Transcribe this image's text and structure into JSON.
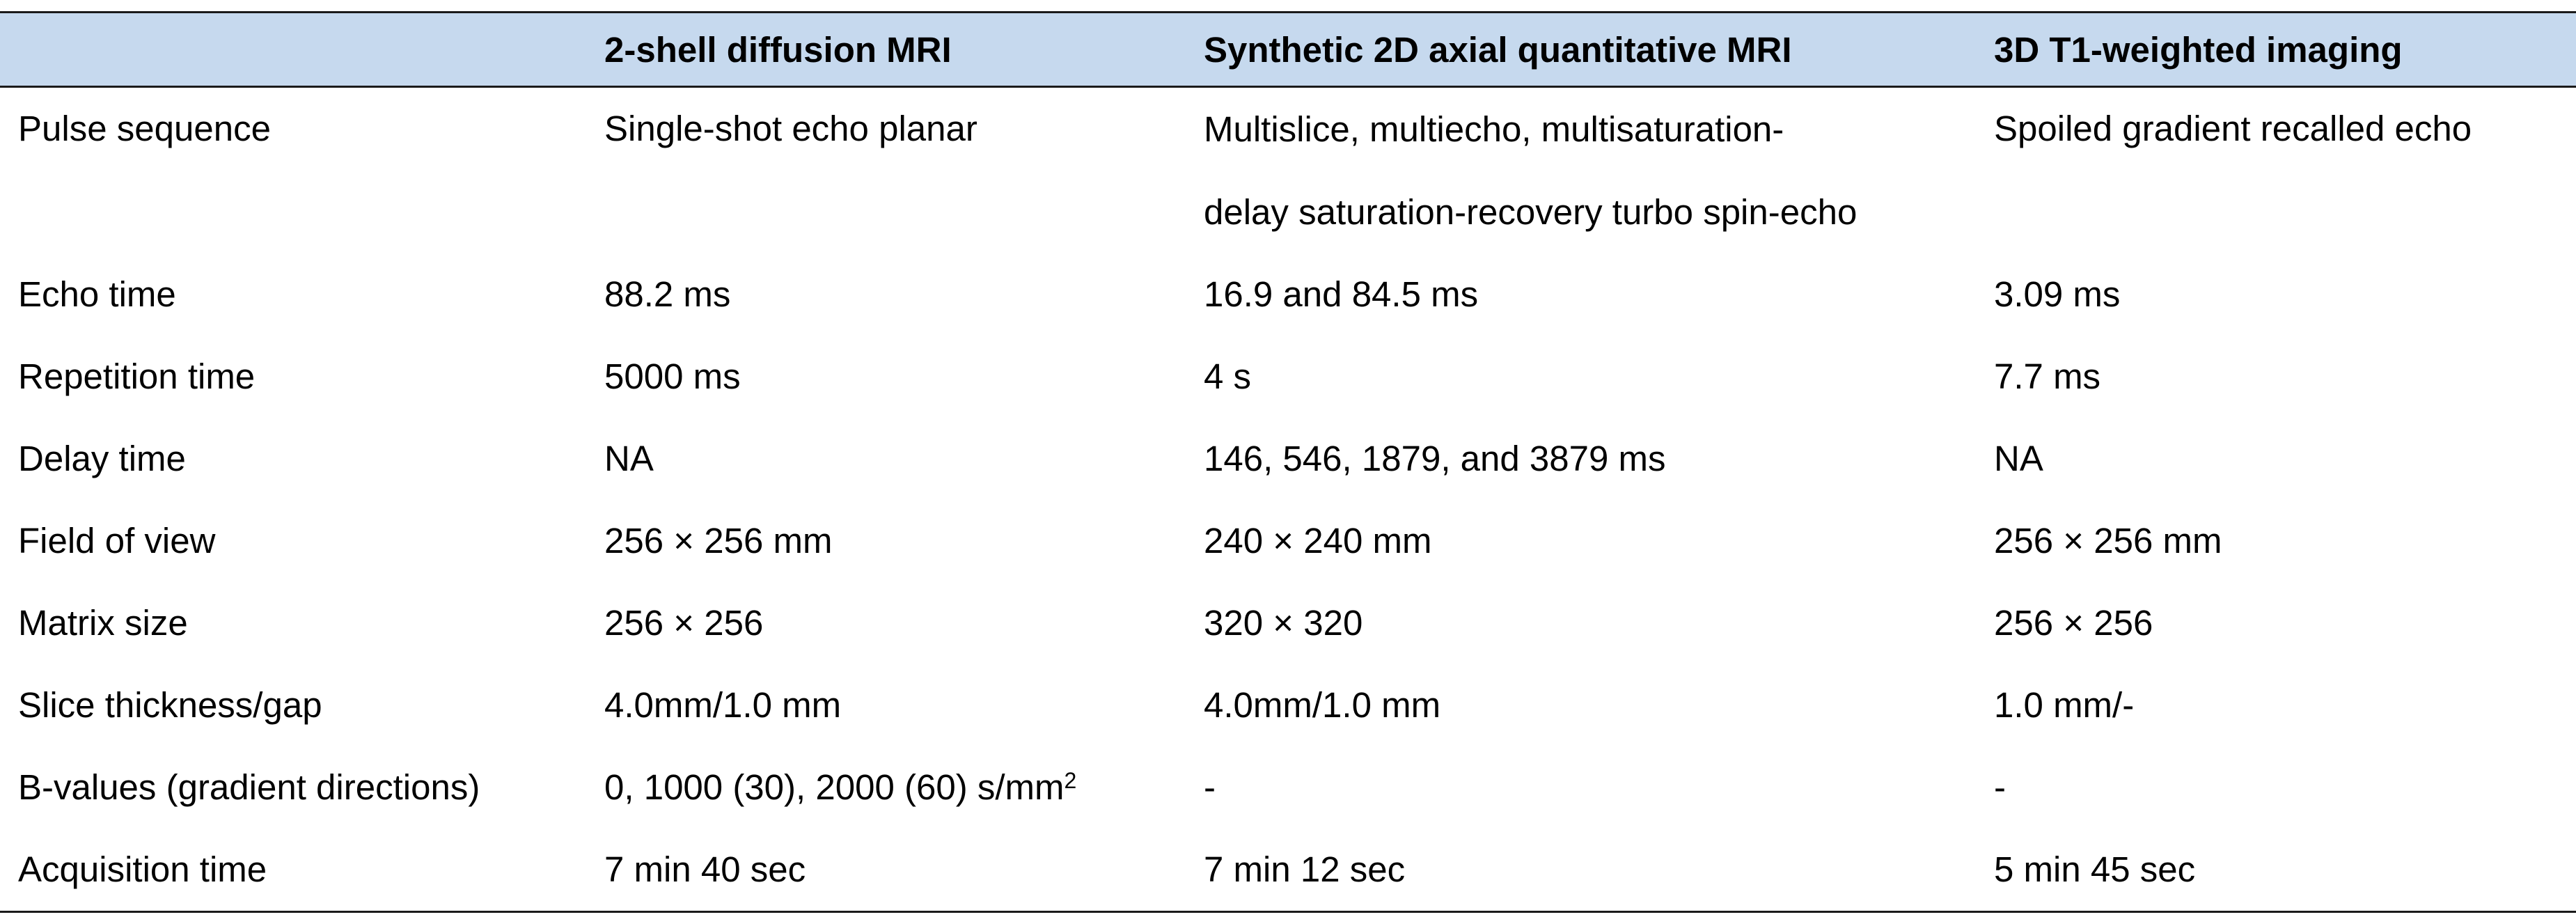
{
  "table": {
    "headers": [
      "",
      "2-shell diffusion MRI",
      "Synthetic 2D axial quantitative MRI",
      "3D T1-weighted imaging"
    ],
    "rows": [
      {
        "label": "Pulse sequence",
        "dmri": "Single-shot echo planar",
        "qmri_line1": "Multislice, multiecho, multisaturation-",
        "qmri_line2": "delay saturation-recovery turbo spin-echo",
        "t1": "Spoiled gradient recalled echo"
      },
      {
        "label": "Echo time",
        "dmri": "88.2 ms",
        "qmri": "16.9 and 84.5 ms",
        "t1": "3.09 ms"
      },
      {
        "label": "Repetition time",
        "dmri": "5000 ms",
        "qmri": "4 s",
        "t1": "7.7 ms"
      },
      {
        "label": "Delay time",
        "dmri": "NA",
        "qmri": "146, 546, 1879, and 3879 ms",
        "t1": "NA"
      },
      {
        "label": "Field of view",
        "dmri": "256 × 256 mm",
        "qmri": "240 × 240 mm",
        "t1": "256 × 256 mm"
      },
      {
        "label": "Matrix size",
        "dmri": "256 × 256",
        "qmri": "320 × 320",
        "t1": "256 × 256"
      },
      {
        "label": "Slice thickness/gap",
        "dmri": "4.0mm/1.0 mm",
        "qmri": "4.0mm/1.0 mm",
        "t1": "1.0 mm/-"
      },
      {
        "label": "B-values (gradient directions)",
        "dmri_base": "0, 1000 (30), 2000 (60) s/mm",
        "dmri_sup": "2",
        "qmri": "-",
        "t1": "-"
      },
      {
        "label": "Acquisition time",
        "dmri": "7 min 40 sec",
        "qmri": "7 min 12 sec",
        "t1": "5 min 45 sec"
      }
    ]
  }
}
